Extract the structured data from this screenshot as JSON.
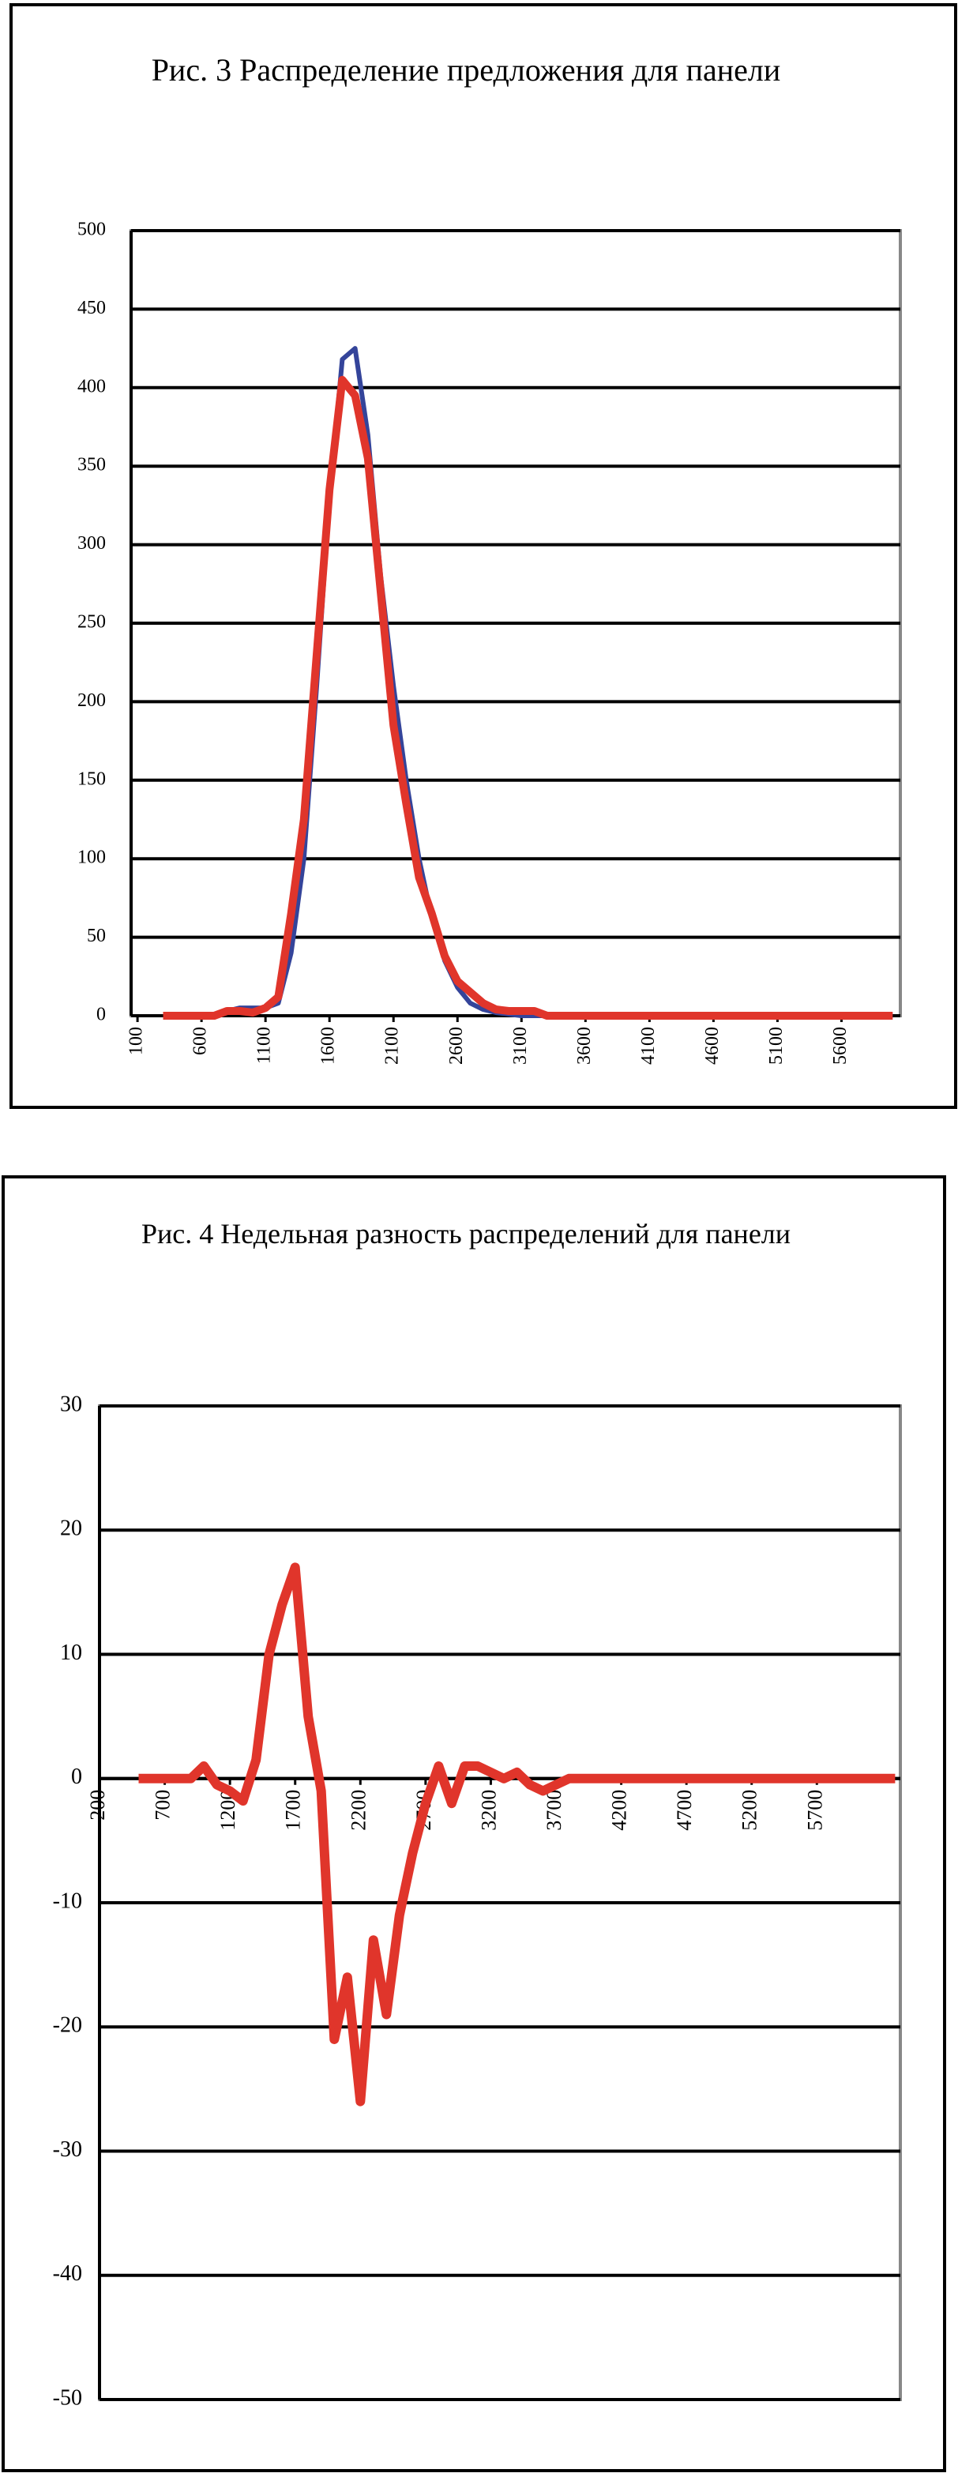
{
  "chart_data": [
    {
      "type": "line",
      "title": "Рис. 3 Распределение предложения для панели",
      "x": [
        300,
        400,
        500,
        600,
        700,
        800,
        900,
        1000,
        1100,
        1200,
        1300,
        1400,
        1500,
        1600,
        1700,
        1800,
        1900,
        2000,
        2100,
        2200,
        2300,
        2400,
        2500,
        2600,
        2700,
        2800,
        2900,
        3000,
        3100,
        3200,
        3300,
        3400,
        3500,
        3600,
        3700,
        3800,
        3900,
        4000,
        4100,
        4200,
        4300,
        4400,
        4500,
        4600,
        4700,
        4800,
        4900,
        5000,
        5100,
        5200,
        5300,
        5400,
        5500,
        5600,
        5700,
        5800,
        5900,
        6000
      ],
      "series": [
        {
          "color": "#34449a",
          "values": [
            0,
            0,
            0,
            0,
            0,
            3,
            5,
            5,
            5,
            8,
            40,
            100,
            210,
            330,
            418,
            425,
            370,
            280,
            210,
            150,
            100,
            62,
            35,
            18,
            8,
            4,
            2,
            1,
            0,
            0,
            0,
            0,
            0,
            0,
            0,
            0,
            0,
            0,
            0,
            0,
            0,
            0,
            0,
            0,
            0,
            0,
            0,
            0,
            0,
            0,
            0,
            0,
            0,
            0,
            0,
            0,
            0,
            0
          ]
        },
        {
          "color": "#e0352b",
          "values": [
            0,
            0,
            0,
            0,
            0,
            3,
            3,
            2,
            5,
            12,
            65,
            125,
            230,
            335,
            405,
            395,
            355,
            270,
            185,
            135,
            88,
            65,
            38,
            22,
            15,
            8,
            4,
            3,
            3,
            3,
            0,
            0,
            0,
            0,
            0,
            0,
            0,
            0,
            0,
            0,
            0,
            0,
            0,
            0,
            0,
            0,
            0,
            0,
            0,
            0,
            0,
            0,
            0,
            0,
            0,
            0,
            0,
            0
          ]
        }
      ],
      "xlim": [
        50,
        6060
      ],
      "xticks": [
        100,
        600,
        1100,
        1600,
        2100,
        2600,
        3100,
        3600,
        4100,
        4600,
        5100,
        5600
      ],
      "ylim": [
        0,
        500
      ],
      "yticks": [
        0,
        50,
        100,
        150,
        200,
        250,
        300,
        350,
        400,
        450,
        500
      ],
      "grid": true
    },
    {
      "type": "line",
      "title": "Рис. 4 Недельная разность распределений для панели",
      "x": [
        500,
        600,
        700,
        800,
        900,
        1000,
        1100,
        1200,
        1300,
        1400,
        1500,
        1600,
        1700,
        1800,
        1900,
        2000,
        2100,
        2200,
        2300,
        2400,
        2500,
        2600,
        2700,
        2800,
        2900,
        3000,
        3100,
        3200,
        3300,
        3400,
        3500,
        3600,
        3700,
        3800,
        3900,
        4000,
        4100,
        4200,
        4300,
        4400,
        4500,
        4600,
        4700,
        4800,
        4900,
        5000,
        5100,
        5200,
        5300,
        5400,
        5500,
        5600,
        5700,
        5800,
        5900,
        6000,
        6100,
        6200,
        6300
      ],
      "series": [
        {
          "color": "#e0352b",
          "values": [
            0,
            0,
            0,
            0,
            0,
            1,
            -0.5,
            -1,
            -1.8,
            1.5,
            10,
            14,
            17,
            5,
            -1,
            -21,
            -16,
            -26,
            -13,
            -19,
            -11,
            -6,
            -2,
            1,
            -2,
            1,
            1,
            0.5,
            0,
            0.5,
            -0.5,
            -1,
            -0.5,
            0,
            0,
            0,
            0,
            0,
            0,
            0,
            0,
            0,
            0,
            0,
            0,
            0,
            0,
            0,
            0,
            0,
            0,
            0,
            0,
            0,
            0,
            0,
            0,
            0,
            0
          ]
        }
      ],
      "xlim": [
        200,
        6340
      ],
      "xticks": [
        200,
        700,
        1200,
        1700,
        2200,
        2700,
        3200,
        3700,
        4200,
        4700,
        5200,
        5700
      ],
      "ylim": [
        -50,
        30
      ],
      "yticks": [
        -50,
        -40,
        -30,
        -20,
        -10,
        0,
        10,
        20,
        30
      ],
      "grid": true
    }
  ]
}
